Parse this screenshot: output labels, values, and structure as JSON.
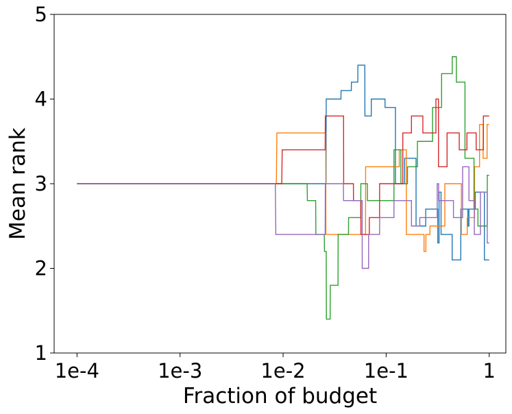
{
  "chart_data": {
    "type": "line",
    "title": "",
    "xlabel": "Fraction of budget",
    "ylabel": "Mean rank",
    "xscale": "log",
    "xlim": [
      6e-05,
      1.45
    ],
    "ylim": [
      1,
      5
    ],
    "x_ticks": [
      {
        "value": 0.0001,
        "label": "1e-4"
      },
      {
        "value": 0.001,
        "label": "1e-3"
      },
      {
        "value": 0.01,
        "label": "1e-2"
      },
      {
        "value": 0.1,
        "label": "1e-1"
      },
      {
        "value": 1,
        "label": "1"
      }
    ],
    "y_ticks": [
      {
        "value": 1,
        "label": "1"
      },
      {
        "value": 2,
        "label": "2"
      },
      {
        "value": 3,
        "label": "3"
      },
      {
        "value": 4,
        "label": "4"
      },
      {
        "value": 5,
        "label": "5"
      }
    ],
    "grid": false,
    "legend": "none",
    "series": [
      {
        "color": "#1f77b4",
        "x": [
          0.0001,
          0.0261,
          0.0262,
          0.0364,
          0.0365,
          0.0459,
          0.046,
          0.0531,
          0.0532,
          0.0621,
          0.0622,
          0.0717,
          0.0718,
          0.0975,
          0.0976,
          0.123,
          0.1231,
          0.151,
          0.1511,
          0.195,
          0.1951,
          0.242,
          0.2421,
          0.317,
          0.3171,
          0.326,
          0.3261,
          0.341,
          0.3411,
          0.437,
          0.4371,
          0.53,
          0.5301,
          0.621,
          0.6211,
          0.636,
          0.6361,
          0.733,
          0.7331,
          0.898,
          0.8981,
          0.975,
          0.9751,
          1.0
        ],
        "y": [
          3.0,
          3.0,
          4.0,
          4.0,
          4.1,
          4.1,
          4.2,
          4.2,
          4.4,
          4.4,
          3.8,
          3.8,
          4.0,
          4.0,
          3.9,
          3.9,
          3.0,
          3.0,
          3.3,
          3.3,
          2.5,
          2.5,
          2.7,
          2.7,
          2.3,
          2.3,
          2.9,
          2.9,
          2.4,
          2.4,
          2.1,
          2.1,
          2.7,
          2.7,
          2.5,
          2.5,
          2.7,
          2.7,
          2.9,
          2.9,
          2.1,
          2.1,
          2.1,
          2.1
        ]
      },
      {
        "color": "#ff7f0e",
        "x": [
          0.0001,
          0.0086,
          0.0087,
          0.0259,
          0.026,
          0.0338,
          0.0339,
          0.0631,
          0.0632,
          0.134,
          0.1341,
          0.157,
          0.1571,
          0.233,
          0.2331,
          0.243,
          0.2431,
          0.266,
          0.2661,
          0.371,
          0.3711,
          0.537,
          0.5371,
          0.612,
          0.6121,
          0.721,
          0.7211,
          0.806,
          0.8061,
          0.873,
          0.8731,
          0.954,
          0.9541,
          1.0
        ],
        "y": [
          3.0,
          3.0,
          3.6,
          3.6,
          2.4,
          2.4,
          2.4,
          2.4,
          3.2,
          3.2,
          3.4,
          3.4,
          2.4,
          2.4,
          2.2,
          2.2,
          2.4,
          2.4,
          2.5,
          2.5,
          3.0,
          3.0,
          2.4,
          2.4,
          2.6,
          2.6,
          3.2,
          3.2,
          3.7,
          3.7,
          3.3,
          3.3,
          3.7,
          3.7
        ]
      },
      {
        "color": "#2ca02c",
        "x": [
          0.0001,
          0.0171,
          0.0172,
          0.0207,
          0.0208,
          0.0251,
          0.0252,
          0.0262,
          0.0263,
          0.0286,
          0.0287,
          0.0341,
          0.0342,
          0.0431,
          0.0432,
          0.0567,
          0.0568,
          0.0657,
          0.0658,
          0.0723,
          0.0724,
          0.119,
          0.1191,
          0.139,
          0.1391,
          0.161,
          0.1611,
          0.201,
          0.2011,
          0.282,
          0.2821,
          0.345,
          0.3451,
          0.438,
          0.4381,
          0.48,
          0.4801,
          0.582,
          0.5821,
          0.712,
          0.7121,
          0.778,
          0.7781,
          0.958,
          0.9581,
          1.0
        ],
        "y": [
          3.0,
          3.0,
          2.8,
          2.8,
          2.4,
          2.4,
          2.2,
          2.2,
          1.4,
          1.4,
          1.8,
          1.8,
          2.4,
          2.4,
          2.6,
          2.6,
          3.0,
          3.0,
          2.8,
          2.8,
          2.8,
          2.8,
          3.4,
          3.4,
          3.0,
          3.0,
          3.2,
          3.2,
          3.5,
          3.5,
          3.9,
          3.9,
          4.3,
          4.3,
          4.5,
          4.5,
          4.2,
          4.2,
          3.3,
          3.3,
          2.7,
          2.7,
          2.5,
          2.5,
          3.1,
          3.1
        ]
      },
      {
        "color": "#d62728",
        "x": [
          0.0001,
          0.0097,
          0.0098,
          0.0256,
          0.0257,
          0.0386,
          0.0387,
          0.0481,
          0.0482,
          0.0568,
          0.0569,
          0.0686,
          0.0687,
          0.0863,
          0.0864,
          0.145,
          0.1451,
          0.176,
          0.1761,
          0.227,
          0.2271,
          0.304,
          0.3041,
          0.322,
          0.3221,
          0.39,
          0.3901,
          0.512,
          0.5121,
          0.608,
          0.6081,
          0.747,
          0.7471,
          0.878,
          0.8781,
          0.975,
          0.9751,
          1.0
        ],
        "y": [
          3.0,
          3.0,
          3.4,
          3.4,
          3.8,
          3.8,
          3.0,
          3.0,
          2.8,
          2.8,
          2.4,
          2.4,
          2.6,
          2.6,
          3.0,
          3.0,
          3.6,
          3.6,
          3.8,
          3.8,
          3.6,
          3.6,
          4.0,
          4.0,
          3.2,
          3.2,
          3.6,
          3.6,
          3.4,
          3.4,
          3.6,
          3.6,
          3.4,
          3.4,
          3.8,
          3.8,
          3.8,
          3.8
        ]
      },
      {
        "color": "#9467bd",
        "x": [
          0.0001,
          0.0084,
          0.0085,
          0.0256,
          0.0257,
          0.0385,
          0.0386,
          0.0585,
          0.0586,
          0.0675,
          0.0676,
          0.0864,
          0.0865,
          0.119,
          0.1191,
          0.176,
          0.1761,
          0.212,
          0.2121,
          0.313,
          0.3131,
          0.323,
          0.3231,
          0.45,
          0.4501,
          0.552,
          0.5521,
          0.636,
          0.6361,
          0.717,
          0.7171,
          0.822,
          0.8221,
          0.957,
          0.9571,
          1.0
        ],
        "y": [
          3.0,
          3.0,
          2.4,
          2.4,
          3.0,
          3.0,
          2.8,
          2.8,
          2.0,
          2.0,
          2.4,
          2.4,
          2.6,
          2.6,
          2.8,
          2.8,
          2.5,
          2.5,
          2.6,
          2.6,
          3.0,
          3.0,
          2.8,
          2.8,
          2.6,
          2.6,
          3.2,
          3.2,
          2.8,
          2.8,
          2.4,
          2.4,
          2.9,
          2.9,
          2.3,
          2.3
        ]
      }
    ]
  }
}
